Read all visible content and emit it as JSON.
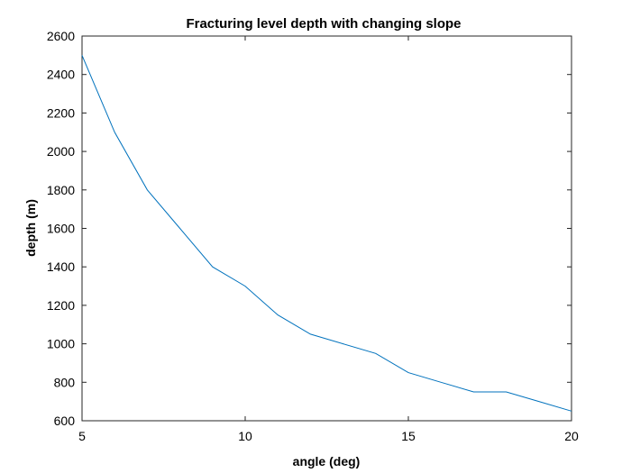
{
  "chart_data": {
    "type": "line",
    "title": "Fracturing level depth with changing slope",
    "xlabel": "angle (deg)",
    "ylabel": "depth (m)",
    "xlim": [
      5,
      20
    ],
    "ylim": [
      600,
      2600
    ],
    "x_ticks": [
      5,
      10,
      15,
      20
    ],
    "y_ticks": [
      600,
      800,
      1000,
      1200,
      1400,
      1600,
      1800,
      2000,
      2200,
      2400,
      2600
    ],
    "grid": false,
    "line_color": "#0072bd",
    "series": [
      {
        "x": [
          5,
          6,
          7,
          8,
          9,
          10,
          11,
          12,
          13,
          14,
          15,
          16,
          17,
          18,
          19,
          20
        ],
        "y": [
          2500,
          2100,
          1800,
          1600,
          1400,
          1300,
          1150,
          1050,
          1000,
          950,
          850,
          800,
          750,
          750,
          700,
          650
        ]
      }
    ]
  }
}
